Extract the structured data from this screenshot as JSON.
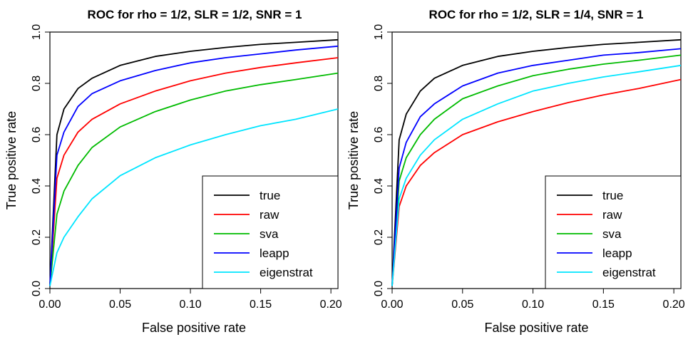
{
  "chart_data": [
    {
      "type": "line",
      "title": "ROC for rho = 1/2, SLR = 1/2, SNR = 1",
      "xlabel": "False positive rate",
      "ylabel": "True positive rate",
      "xlim": [
        0,
        0.205
      ],
      "ylim": [
        0,
        1.0
      ],
      "xticks": [
        "0.00",
        "0.05",
        "0.10",
        "0.15",
        "0.20"
      ],
      "yticks": [
        "0.0",
        "0.2",
        "0.4",
        "0.6",
        "0.8",
        "1.0"
      ],
      "legend_position": "bottom-right",
      "x": [
        0,
        0.005,
        0.01,
        0.02,
        0.03,
        0.05,
        0.075,
        0.1,
        0.125,
        0.15,
        0.175,
        0.205
      ],
      "series": [
        {
          "name": "true",
          "color": "#000000",
          "values": [
            0.01,
            0.6,
            0.7,
            0.78,
            0.82,
            0.87,
            0.905,
            0.925,
            0.94,
            0.952,
            0.96,
            0.97
          ]
        },
        {
          "name": "raw",
          "color": "#ff0000",
          "values": [
            0.01,
            0.43,
            0.52,
            0.61,
            0.66,
            0.72,
            0.77,
            0.81,
            0.84,
            0.862,
            0.88,
            0.9
          ]
        },
        {
          "name": "sva",
          "color": "#00bb00",
          "values": [
            0.01,
            0.29,
            0.38,
            0.48,
            0.55,
            0.63,
            0.69,
            0.735,
            0.77,
            0.795,
            0.815,
            0.84
          ]
        },
        {
          "name": "leapp",
          "color": "#0000ff",
          "values": [
            0.01,
            0.52,
            0.61,
            0.71,
            0.76,
            0.81,
            0.85,
            0.88,
            0.9,
            0.915,
            0.93,
            0.945
          ]
        },
        {
          "name": "eigenstrat",
          "color": "#00e5ff",
          "values": [
            0.01,
            0.14,
            0.2,
            0.28,
            0.35,
            0.44,
            0.51,
            0.56,
            0.6,
            0.635,
            0.66,
            0.7
          ]
        }
      ]
    },
    {
      "type": "line",
      "title": "ROC for rho = 1/2, SLR = 1/4, SNR = 1",
      "xlabel": "False positive rate",
      "ylabel": "True positive rate",
      "xlim": [
        0,
        0.205
      ],
      "ylim": [
        0,
        1.0
      ],
      "xticks": [
        "0.00",
        "0.05",
        "0.10",
        "0.15",
        "0.20"
      ],
      "yticks": [
        "0.0",
        "0.2",
        "0.4",
        "0.6",
        "0.8",
        "1.0"
      ],
      "legend_position": "bottom-right",
      "x": [
        0,
        0.005,
        0.01,
        0.02,
        0.03,
        0.05,
        0.075,
        0.1,
        0.125,
        0.15,
        0.175,
        0.205
      ],
      "series": [
        {
          "name": "true",
          "color": "#000000",
          "values": [
            0.01,
            0.58,
            0.68,
            0.77,
            0.82,
            0.87,
            0.905,
            0.925,
            0.94,
            0.952,
            0.96,
            0.97
          ]
        },
        {
          "name": "raw",
          "color": "#ff0000",
          "values": [
            0.01,
            0.32,
            0.4,
            0.48,
            0.53,
            0.6,
            0.65,
            0.69,
            0.725,
            0.755,
            0.78,
            0.815
          ]
        },
        {
          "name": "sva",
          "color": "#00bb00",
          "values": [
            0.01,
            0.42,
            0.51,
            0.6,
            0.66,
            0.74,
            0.79,
            0.83,
            0.855,
            0.875,
            0.89,
            0.91
          ]
        },
        {
          "name": "leapp",
          "color": "#0000ff",
          "values": [
            0.01,
            0.47,
            0.57,
            0.67,
            0.72,
            0.79,
            0.84,
            0.87,
            0.89,
            0.91,
            0.92,
            0.935
          ]
        },
        {
          "name": "eigenstrat",
          "color": "#00e5ff",
          "values": [
            0.01,
            0.35,
            0.43,
            0.52,
            0.58,
            0.66,
            0.72,
            0.77,
            0.8,
            0.825,
            0.845,
            0.87
          ]
        }
      ]
    }
  ]
}
